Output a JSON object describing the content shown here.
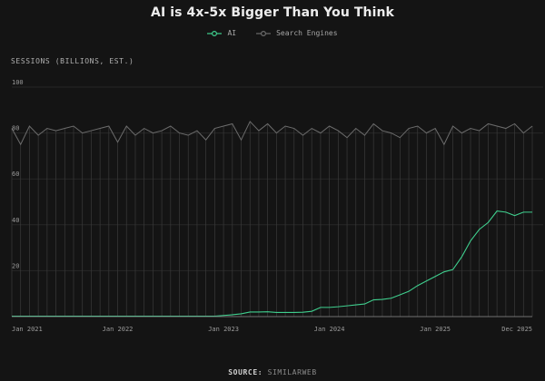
{
  "colors": {
    "background": "#141414",
    "ai": "#3fcf8e",
    "search": "#6c6c6c",
    "grid": "#262626",
    "axis": "#8f8f8f",
    "tick": "#9a9a9a"
  },
  "legend": {
    "ai_label": "AI",
    "search_label": "Search Engines"
  },
  "source": {
    "key": "SOURCE:",
    "value": "SIMILARWEB"
  },
  "chart_data": {
    "type": "line",
    "title": "AI is 4x-5x Bigger Than You Think",
    "ylabel": "SESSIONS (BILLIONS, EST.)",
    "xlabel": "",
    "ylim": [
      0,
      100
    ],
    "yticks": [
      20,
      40,
      60,
      80,
      100
    ],
    "grid": true,
    "legend_position": "top-center",
    "x_tick_labels": [
      "Jan 2021",
      "Jan 2022",
      "Jan 2023",
      "Jan 2024",
      "Jan 2025",
      "Dec 2025"
    ],
    "x": [
      "2021-01",
      "2021-02",
      "2021-03",
      "2021-04",
      "2021-05",
      "2021-06",
      "2021-07",
      "2021-08",
      "2021-09",
      "2021-10",
      "2021-11",
      "2021-12",
      "2022-01",
      "2022-02",
      "2022-03",
      "2022-04",
      "2022-05",
      "2022-06",
      "2022-07",
      "2022-08",
      "2022-09",
      "2022-10",
      "2022-11",
      "2022-12",
      "2023-01",
      "2023-02",
      "2023-03",
      "2023-04",
      "2023-05",
      "2023-06",
      "2023-07",
      "2023-08",
      "2023-09",
      "2023-10",
      "2023-11",
      "2023-12",
      "2024-01",
      "2024-02",
      "2024-03",
      "2024-04",
      "2024-05",
      "2024-06",
      "2024-07",
      "2024-08",
      "2024-09",
      "2024-10",
      "2024-11",
      "2024-12",
      "2025-01",
      "2025-02",
      "2025-03",
      "2025-04",
      "2025-05",
      "2025-06",
      "2025-07",
      "2025-08",
      "2025-09",
      "2025-10",
      "2025-11",
      "2025-12"
    ],
    "series": [
      {
        "name": "AI",
        "values": [
          0.2,
          0.2,
          0.2,
          0.2,
          0.2,
          0.2,
          0.2,
          0.2,
          0.2,
          0.2,
          0.2,
          0.2,
          0.2,
          0.2,
          0.2,
          0.2,
          0.2,
          0.2,
          0.2,
          0.2,
          0.2,
          0.2,
          0.2,
          0.2,
          0.5,
          0.8,
          1.2,
          2.0,
          2.0,
          2.1,
          1.8,
          1.8,
          1.8,
          1.9,
          2.3,
          4.0,
          4.0,
          4.3,
          4.7,
          5.1,
          5.5,
          7.3,
          7.5,
          8.0,
          9.5,
          11.0,
          13.5,
          15.5,
          17.5,
          19.5,
          20.5,
          26.0,
          33.0,
          38.0,
          41.0,
          46.0,
          45.5,
          44.0,
          45.5,
          45.5
        ]
      },
      {
        "name": "Search Engines",
        "values": [
          82,
          75,
          83,
          79,
          82,
          81,
          82,
          83,
          80,
          81,
          82,
          83,
          76,
          83,
          79,
          82,
          80,
          81,
          83,
          80,
          79,
          81,
          77,
          82,
          83,
          84,
          77,
          85,
          81,
          84,
          80,
          83,
          82,
          79,
          82,
          80,
          83,
          81,
          78,
          82,
          79,
          84,
          81,
          80,
          78,
          82,
          83,
          80,
          82,
          75,
          83,
          80,
          82,
          81,
          84,
          83,
          82,
          84,
          80,
          83
        ]
      }
    ]
  }
}
